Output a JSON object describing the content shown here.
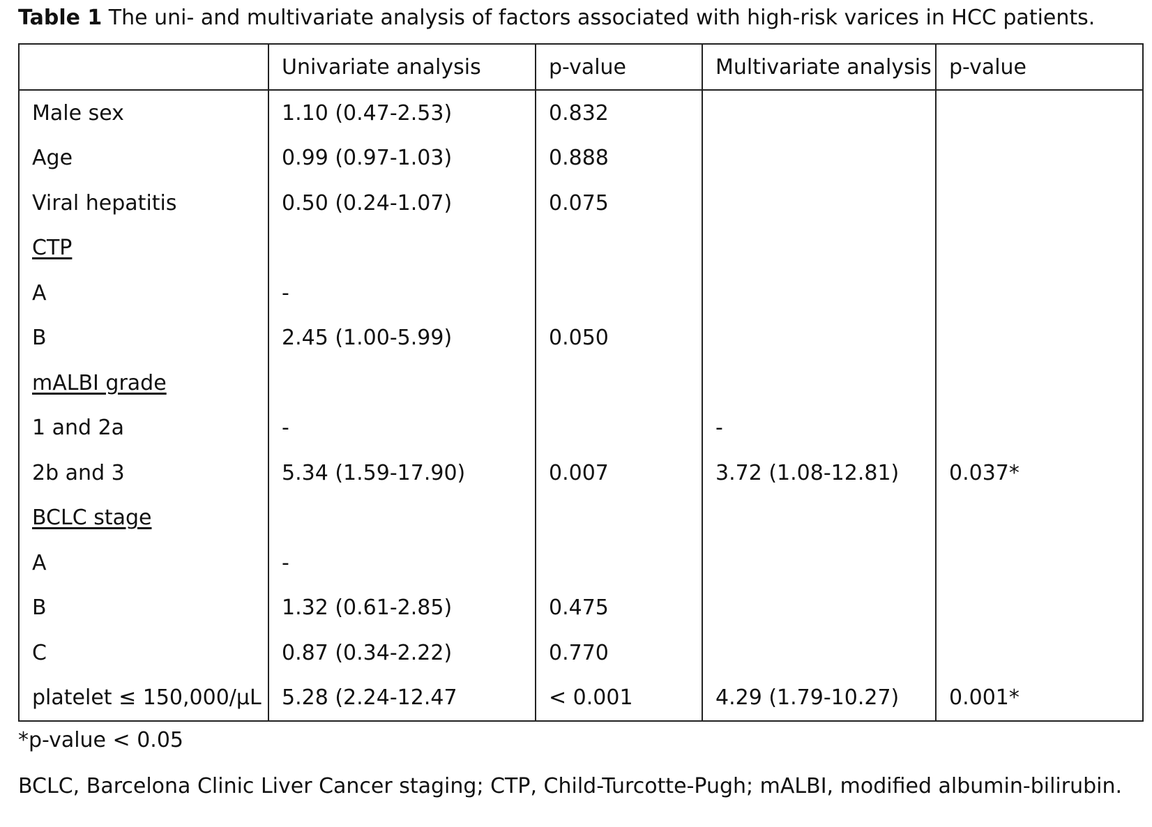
{
  "caption": {
    "label": "Table 1",
    "text": " The uni- and multivariate analysis of factors associated with high-risk varices in HCC patients."
  },
  "columns": [
    "",
    "Univariate analysis",
    "p-value",
    "Multivariate analysis",
    "p-value"
  ],
  "rows": [
    {
      "factor": "Male sex",
      "uni": "1.10 (0.47-2.53)",
      "p1": "0.832",
      "multi": "",
      "p2": ""
    },
    {
      "factor": "Age",
      "uni": "0.99 (0.97-1.03)",
      "p1": "0.888",
      "multi": "",
      "p2": ""
    },
    {
      "factor": "Viral hepatitis",
      "uni": "0.50 (0.24-1.07)",
      "p1": "0.075",
      "multi": "",
      "p2": ""
    },
    {
      "factor": "CTP",
      "uni": "",
      "p1": "",
      "multi": "",
      "p2": ""
    },
    {
      "factor": "A",
      "uni": "-",
      "p1": "",
      "multi": "",
      "p2": ""
    },
    {
      "factor": "B",
      "uni": "2.45 (1.00-5.99)",
      "p1": "0.050",
      "multi": "",
      "p2": ""
    },
    {
      "factor": "mALBI grade",
      "uni": "",
      "p1": "",
      "multi": "",
      "p2": ""
    },
    {
      "factor": "1 and 2a",
      "uni": "-",
      "p1": "",
      "multi": "-",
      "p2": ""
    },
    {
      "factor": "2b and 3",
      "uni": "5.34 (1.59-17.90)",
      "p1": "0.007",
      "multi": "3.72 (1.08-12.81)",
      "p2": "0.037*"
    },
    {
      "factor": "BCLC stage",
      "uni": "",
      "p1": "",
      "multi": "",
      "p2": ""
    },
    {
      "factor": "A",
      "uni": "-",
      "p1": "",
      "multi": "",
      "p2": ""
    },
    {
      "factor": "B",
      "uni": "1.32 (0.61-2.85)",
      "p1": "0.475",
      "multi": "",
      "p2": ""
    },
    {
      "factor": "C",
      "uni": "0.87 (0.34-2.22)",
      "p1": "0.770",
      "multi": "",
      "p2": ""
    },
    {
      "factor": "platelet ≤ 150,000/μL",
      "uni": "5.28 (2.24-12.47",
      "p1": "< 0.001",
      "multi": "4.29 (1.79-10.27)",
      "p2": "0.001*"
    }
  ],
  "footnotes": [
    "*p-value < 0.05",
    "BCLC, Barcelona Clinic Liver Cancer staging; CTP, Child-Turcotte-Pugh; mALBI, modified albumin-bilirubin."
  ]
}
